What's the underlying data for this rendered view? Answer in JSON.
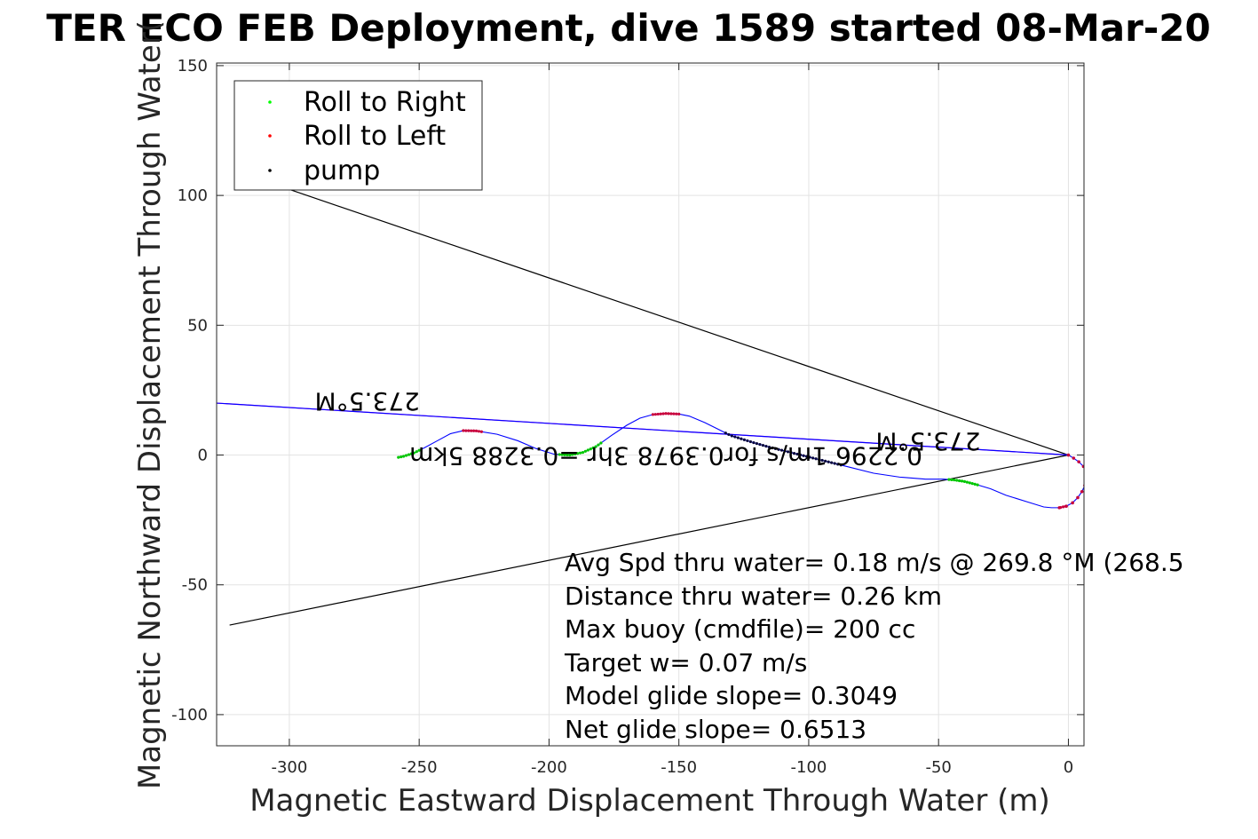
{
  "chart_data": {
    "type": "line",
    "title": "TER ECO FEB Deployment, dive 1589 started 08-Mar-20",
    "xlabel": "Magnetic Eastward Displacement Through Water (m)",
    "ylabel": "Magnetic Northward Displacement Through Water(",
    "xlim": [
      -328,
      6
    ],
    "ylim": [
      -112,
      151
    ],
    "xticks": [
      -300,
      -250,
      -200,
      -150,
      -100,
      -50,
      0
    ],
    "yticks": [
      -100,
      -50,
      0,
      50,
      100,
      150
    ],
    "grid": true,
    "legend": {
      "placement": "top-left",
      "entries": [
        {
          "label": "Roll to Right",
          "color": "#00ff00"
        },
        {
          "label": "Roll to Left",
          "color": "#ff0000"
        },
        {
          "label": "pump",
          "color": "#000000"
        }
      ]
    },
    "track": {
      "color": "#0000ff",
      "points": [
        [
          0,
          0
        ],
        [
          2,
          -1.2
        ],
        [
          4,
          -2.6
        ],
        [
          5.8,
          -4.4
        ],
        [
          6.6,
          -6.6
        ],
        [
          6.7,
          -9.2
        ],
        [
          6.3,
          -11.7
        ],
        [
          5.2,
          -14.1
        ],
        [
          3.6,
          -16.4
        ],
        [
          1.6,
          -18.4
        ],
        [
          -0.8,
          -19.7
        ],
        [
          -3.5,
          -20.3
        ],
        [
          -6.5,
          -20.3
        ],
        [
          -9.5,
          -20
        ],
        [
          -16,
          -18
        ],
        [
          -24,
          -15.5
        ],
        [
          -30,
          -13
        ],
        [
          -35,
          -11.5
        ],
        [
          -40,
          -10.2
        ],
        [
          -44,
          -9.6
        ],
        [
          -48,
          -9.3
        ],
        [
          -55,
          -9.3
        ],
        [
          -65,
          -8.5
        ],
        [
          -75,
          -7
        ],
        [
          -85,
          -4.5
        ],
        [
          -95,
          -2
        ],
        [
          -105,
          0.5
        ],
        [
          -115,
          3
        ],
        [
          -122,
          5
        ],
        [
          -130,
          7.5
        ],
        [
          -135,
          10
        ],
        [
          -140,
          12.5
        ],
        [
          -146,
          15
        ],
        [
          -150,
          15.8
        ],
        [
          -155,
          16
        ],
        [
          -160,
          15.6
        ],
        [
          -165,
          14.2
        ],
        [
          -170,
          11.5
        ],
        [
          -176,
          7.5
        ],
        [
          -182,
          3.2
        ],
        [
          -187,
          1
        ],
        [
          -192,
          0
        ],
        [
          -198,
          0.3
        ],
        [
          -205,
          2.5
        ],
        [
          -212,
          5.5
        ],
        [
          -220,
          8
        ],
        [
          -228,
          9.3
        ],
        [
          -233,
          9.4
        ],
        [
          -238,
          8.2
        ],
        [
          -243,
          5.5
        ],
        [
          -248,
          2.8
        ],
        [
          -252,
          0.8
        ],
        [
          -256,
          -0.5
        ],
        [
          -258,
          -0.9
        ]
      ]
    },
    "roll_right_x_ranges": [
      [
        -258,
        -250
      ],
      [
        -196,
        -180
      ],
      [
        -46,
        -35
      ]
    ],
    "roll_left_x_ranges": [
      [
        -3,
        0
      ],
      [
        -160,
        -150
      ],
      [
        -226,
        -233
      ]
    ],
    "pump_x_range": [
      -132,
      -87
    ],
    "reference_lines": [
      {
        "color": "#000000",
        "points": [
          [
            0,
            0
          ],
          [
            -302,
            103
          ]
        ]
      },
      {
        "color": "#000000",
        "points": [
          [
            0,
            0
          ],
          [
            -323,
            -65.5
          ]
        ]
      },
      {
        "color": "#ff00ff",
        "points": [
          [
            0,
            0
          ],
          [
            -328,
            20
          ]
        ]
      },
      {
        "color": "#0000ff",
        "points": [
          [
            0,
            0
          ],
          [
            -328,
            20
          ]
        ]
      }
    ],
    "heading_labels": [
      {
        "text": "273.5°M",
        "x": -270,
        "y": 24,
        "rotate": 180
      },
      {
        "text": "273.5°M",
        "x": -54,
        "y": 8.5,
        "rotate": 180
      },
      {
        "text": "0.2296 1m/s for0.3978 3hr =0.3288 5km",
        "x": -155,
        "y": 3,
        "rotate": 180
      }
    ],
    "annotations": [
      "Avg Spd thru water=  0.18 m/s @ 269.8 °M (268.5",
      "Distance thru water=  0.26 km",
      "Max buoy (cmdfile)= 200 cc",
      "Target w= 0.07 m/s",
      "Model glide slope= 0.3049",
      "Net glide slope= 0.6513"
    ]
  }
}
